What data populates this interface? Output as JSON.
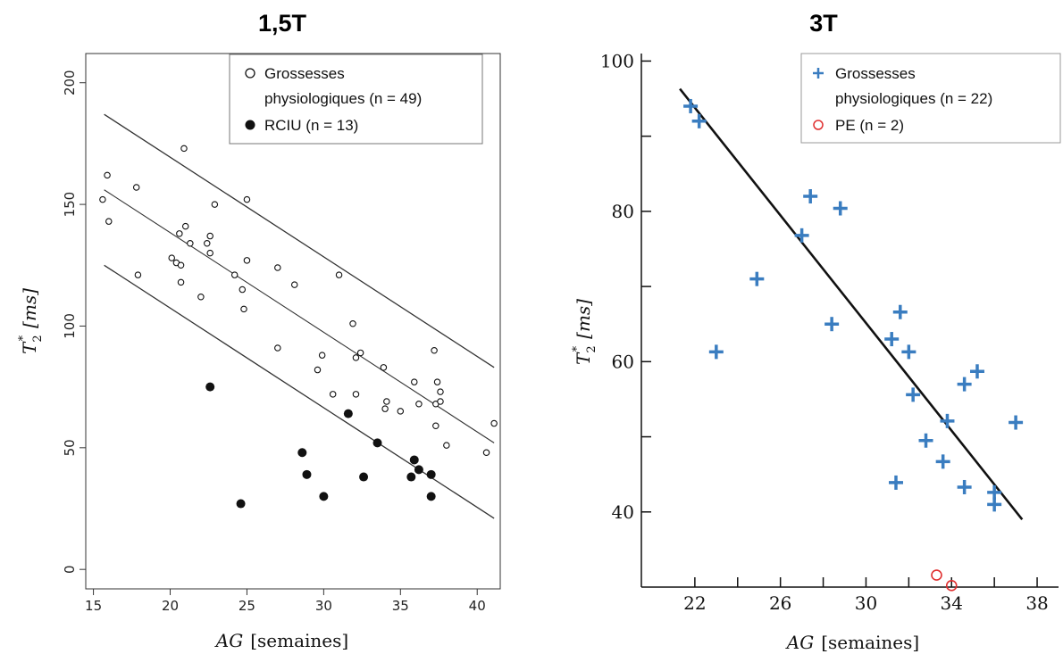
{
  "chart_data": [
    {
      "type": "scatter",
      "title": "1,5T",
      "xlabel_main": "AG",
      "xlabel_unit": "[semaines]",
      "ylabel_main": "T",
      "ylabel_sub": "2",
      "ylabel_sup": "*",
      "ylabel_unit": "[ms]",
      "xlim": [
        14.5,
        41.5
      ],
      "ylim": [
        -8,
        212
      ],
      "xticks": [
        15,
        20,
        25,
        30,
        35,
        40
      ],
      "yticks": [
        0,
        50,
        100,
        150,
        200
      ],
      "legend_position": "top-right",
      "series": [
        {
          "name": "Grossesses physiologiques (n = 49)",
          "legend_line1": "Grossesses",
          "legend_line2": "physiologiques (n = 49)",
          "marker": "open-circle",
          "points": [
            [
              15.6,
              152
            ],
            [
              15.9,
              162
            ],
            [
              16.0,
              143
            ],
            [
              17.8,
              157
            ],
            [
              17.9,
              121
            ],
            [
              20.1,
              128
            ],
            [
              20.4,
              126
            ],
            [
              20.6,
              138
            ],
            [
              20.7,
              125
            ],
            [
              20.7,
              118
            ],
            [
              20.9,
              173
            ],
            [
              21.0,
              141
            ],
            [
              21.3,
              134
            ],
            [
              22.0,
              112
            ],
            [
              22.4,
              134
            ],
            [
              22.6,
              137
            ],
            [
              22.6,
              130
            ],
            [
              22.9,
              150
            ],
            [
              24.2,
              121
            ],
            [
              24.7,
              115
            ],
            [
              24.8,
              107
            ],
            [
              25.0,
              152
            ],
            [
              25.0,
              127
            ],
            [
              27.0,
              124
            ],
            [
              27.0,
              91
            ],
            [
              28.1,
              117
            ],
            [
              29.6,
              82
            ],
            [
              29.9,
              88
            ],
            [
              30.6,
              72
            ],
            [
              31.0,
              121
            ],
            [
              31.9,
              101
            ],
            [
              32.1,
              87
            ],
            [
              32.1,
              72
            ],
            [
              32.4,
              89
            ],
            [
              33.9,
              83
            ],
            [
              34.0,
              66
            ],
            [
              34.1,
              69
            ],
            [
              35.0,
              65
            ],
            [
              35.9,
              77
            ],
            [
              36.2,
              68
            ],
            [
              37.2,
              90
            ],
            [
              37.3,
              68
            ],
            [
              37.3,
              59
            ],
            [
              37.4,
              77
            ],
            [
              37.6,
              69
            ],
            [
              37.6,
              73
            ],
            [
              38.0,
              51
            ],
            [
              40.6,
              48
            ],
            [
              41.1,
              60
            ]
          ]
        },
        {
          "name": "RCIU (n = 13)",
          "legend_line1": "RCIU (n = 13)",
          "marker": "filled-circle",
          "points": [
            [
              22.6,
              75
            ],
            [
              24.6,
              27
            ],
            [
              28.6,
              48
            ],
            [
              28.9,
              39
            ],
            [
              30.0,
              30
            ],
            [
              31.6,
              64
            ],
            [
              32.6,
              38
            ],
            [
              33.5,
              52
            ],
            [
              35.7,
              38
            ],
            [
              35.9,
              45
            ],
            [
              36.2,
              41
            ],
            [
              37.0,
              39
            ],
            [
              37.0,
              30
            ]
          ]
        }
      ],
      "lines": [
        {
          "role": "upper",
          "x": [
            15.7,
            41.1
          ],
          "y": [
            187,
            83
          ]
        },
        {
          "role": "fit",
          "x": [
            15.7,
            41.1
          ],
          "y": [
            156,
            52
          ]
        },
        {
          "role": "lower",
          "x": [
            15.7,
            41.1
          ],
          "y": [
            125,
            21
          ]
        }
      ]
    },
    {
      "type": "scatter",
      "title": "3T",
      "xlabel_main": "AG",
      "xlabel_unit": "[semaines]",
      "ylabel_main": "T",
      "ylabel_sub": "2",
      "ylabel_sup": "*",
      "ylabel_unit": "[ms]",
      "xlim": [
        19.5,
        39
      ],
      "ylim": [
        30,
        101
      ],
      "xticks": [
        22,
        26,
        30,
        34,
        38
      ],
      "yticks": [
        40,
        60,
        80,
        100
      ],
      "legend_position": "top-right",
      "series": [
        {
          "name": "Grossesses physiologiques (n = 22)",
          "legend_line1": "Grossesses",
          "legend_line2": "physiologiques (n = 22)",
          "marker": "plus",
          "color": "#3a7dc0",
          "points": [
            [
              21.8,
              94
            ],
            [
              22.2,
              92
            ],
            [
              23.0,
              61.3
            ],
            [
              24.9,
              71
            ],
            [
              27.0,
              76.8
            ],
            [
              27.4,
              82
            ],
            [
              28.4,
              65
            ],
            [
              28.8,
              80.4
            ],
            [
              31.2,
              63
            ],
            [
              31.4,
              43.9
            ],
            [
              31.6,
              66.6
            ],
            [
              32.0,
              61.3
            ],
            [
              32.2,
              55.6
            ],
            [
              32.8,
              49.5
            ],
            [
              33.6,
              46.7
            ],
            [
              33.8,
              52.1
            ],
            [
              34.6,
              43.3
            ],
            [
              34.6,
              57
            ],
            [
              35.2,
              58.7
            ],
            [
              36.0,
              42.6
            ],
            [
              36.0,
              41
            ],
            [
              37.0,
              51.9
            ]
          ]
        },
        {
          "name": "PE (n = 2)",
          "legend_line1": "PE (n = 2)",
          "marker": "open-circle",
          "color": "#e03030",
          "points": [
            [
              33.3,
              31.6
            ],
            [
              34.0,
              30.2
            ]
          ]
        }
      ],
      "lines": [
        {
          "role": "fit",
          "x": [
            21.3,
            37.3
          ],
          "y": [
            96.3,
            39
          ]
        }
      ]
    }
  ]
}
